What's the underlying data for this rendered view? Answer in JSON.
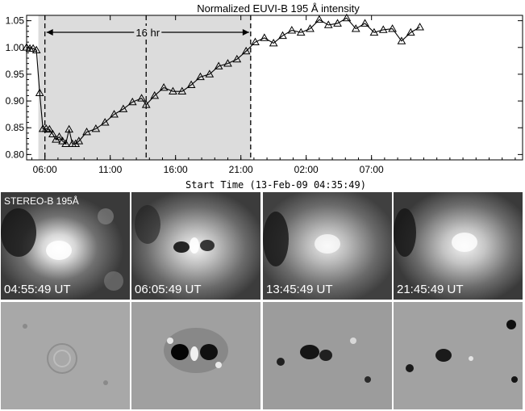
{
  "chart_data": {
    "type": "line",
    "title": "Normalized EUVI-B 195 Å intensity",
    "xlabel": "Start Time (13-Feb-09 04:35:49)",
    "ylabel": "",
    "xlim": [
      4.6,
      24.6
    ],
    "ylim": [
      0.79,
      1.06
    ],
    "x_tick_labels": [
      "06:00",
      "11:00",
      "16:00",
      "21:00",
      "02:00",
      "07:00"
    ],
    "y_tick_labels": [
      "0.80",
      "0.85",
      "0.90",
      "0.95",
      "1.00",
      "1.05"
    ],
    "shaded_interval_hours": [
      5.5,
      21.75
    ],
    "vertical_lines_hours": [
      6.0,
      13.75,
      21.75
    ],
    "duration_annotation": "16 hr",
    "marker": "triangle",
    "x_hours": [
      4.6,
      4.85,
      5.1,
      5.35,
      5.6,
      5.85,
      6.1,
      6.35,
      6.6,
      6.85,
      7.1,
      7.35,
      7.6,
      7.85,
      8.1,
      8.35,
      8.6,
      9.2,
      9.9,
      10.6,
      11.3,
      12.0,
      12.7,
      13.4,
      13.75,
      14.4,
      15.1,
      15.8,
      16.5,
      17.2,
      17.9,
      18.6,
      19.3,
      20.0,
      20.7,
      21.4,
      22.1,
      22.8,
      23.5,
      24.2,
      24.9,
      25.6,
      26.3,
      27.0,
      27.7,
      28.4,
      29.1,
      29.8,
      30.5,
      31.2,
      31.9,
      32.6,
      33.3,
      34.0,
      34.7
    ],
    "y_values": [
      1.0,
      0.998,
      0.998,
      0.995,
      0.915,
      0.848,
      0.848,
      0.847,
      0.838,
      0.828,
      0.833,
      0.825,
      0.82,
      0.847,
      0.82,
      0.82,
      0.825,
      0.842,
      0.848,
      0.86,
      0.875,
      0.885,
      0.898,
      0.905,
      0.893,
      0.91,
      0.925,
      0.918,
      0.918,
      0.93,
      0.945,
      0.95,
      0.965,
      0.97,
      0.978,
      0.993,
      1.01,
      1.018,
      1.008,
      1.022,
      1.032,
      1.028,
      1.035,
      1.052,
      1.042,
      1.045,
      1.055,
      1.035,
      1.045,
      1.028,
      1.033,
      1.035,
      1.012,
      1.028,
      1.038
    ]
  },
  "images": {
    "instrument_label": "STEREO-B 195Å",
    "timestamps": [
      "04:55:49 UT",
      "06:05:49 UT",
      "13:45:49 UT",
      "21:45:49 UT"
    ]
  }
}
